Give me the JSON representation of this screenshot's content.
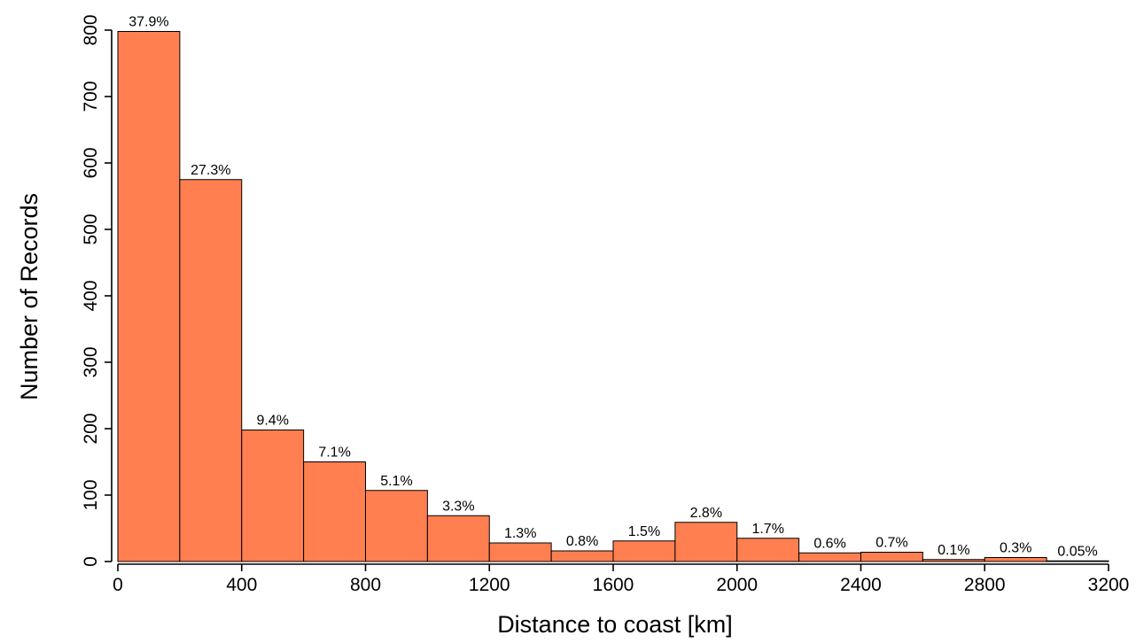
{
  "chart_data": {
    "type": "bar",
    "histogram": true,
    "xlabel": "Distance to coast [km]",
    "ylabel": "Number of Records",
    "xlim": [
      0,
      3200
    ],
    "ylim": [
      0,
      800
    ],
    "x_ticks": [
      "0",
      "400",
      "800",
      "1200",
      "1600",
      "2000",
      "2400",
      "2800",
      "3200"
    ],
    "y_ticks": [
      "0",
      "100",
      "200",
      "300",
      "400",
      "500",
      "600",
      "700",
      "800"
    ],
    "bin_edges": [
      0,
      200,
      400,
      600,
      800,
      1000,
      1200,
      1400,
      1600,
      1800,
      2000,
      2200,
      2400,
      2600,
      2800,
      3000,
      3200
    ],
    "values": [
      798,
      575,
      198,
      150,
      107,
      69,
      28,
      16,
      31,
      59,
      35,
      13,
      14,
      3,
      6,
      1
    ],
    "labels": [
      "37.9%",
      "27.3%",
      "9.4%",
      "7.1%",
      "5.1%",
      "3.3%",
      "1.3%",
      "0.8%",
      "1.5%",
      "2.8%",
      "1.7%",
      "0.6%",
      "0.7%",
      "0.1%",
      "0.3%",
      "0.05%"
    ],
    "bar_color": "#ff7f50",
    "grid": false,
    "legend": "none"
  }
}
